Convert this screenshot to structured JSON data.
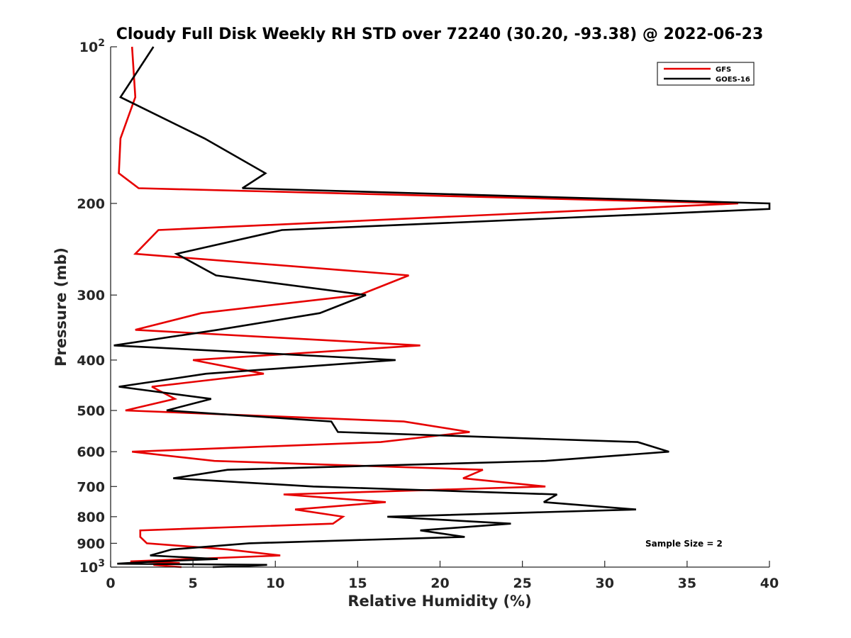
{
  "chart_data": {
    "type": "line",
    "title": "Cloudy Full Disk Weekly RH STD over 72240 (30.20, -93.38) @ 2022-06-23",
    "xlabel": "Relative Humidity (%)",
    "ylabel": "Pressure (mb)",
    "xlim": [
      0,
      40
    ],
    "ylim": [
      100,
      1000
    ],
    "yscale": "log",
    "y_reversed": true,
    "x_ticks": [
      0,
      5,
      10,
      15,
      20,
      25,
      30,
      35,
      40
    ],
    "x_tick_labels": [
      "0",
      "5",
      "10",
      "15",
      "20",
      "25",
      "30",
      "35",
      "40"
    ],
    "y_ticks": [
      100,
      200,
      300,
      400,
      500,
      600,
      700,
      800,
      900,
      1000
    ],
    "y_tick_labels": [
      {
        "base": "10",
        "exp": "2"
      },
      {
        "base": "200",
        "exp": ""
      },
      {
        "base": "300",
        "exp": ""
      },
      {
        "base": "400",
        "exp": ""
      },
      {
        "base": "500",
        "exp": ""
      },
      {
        "base": "600",
        "exp": ""
      },
      {
        "base": "700",
        "exp": ""
      },
      {
        "base": "800",
        "exp": ""
      },
      {
        "base": "900",
        "exp": ""
      },
      {
        "base": "10",
        "exp": "3"
      }
    ],
    "legend_position": "top-right",
    "annotation": "Sample Size = 2",
    "series": [
      {
        "name": "GFS",
        "color": "#e60000",
        "points": [
          [
            1.3,
            100
          ],
          [
            1.5,
            125
          ],
          [
            0.6,
            150
          ],
          [
            0.5,
            175
          ],
          [
            1.7,
            187
          ],
          [
            38.1,
            200
          ],
          [
            2.9,
            225
          ],
          [
            1.5,
            250
          ],
          [
            18.1,
            275
          ],
          [
            15.1,
            300
          ],
          [
            5.5,
            325
          ],
          [
            1.5,
            350
          ],
          [
            18.8,
            375
          ],
          [
            5.0,
            400
          ],
          [
            9.3,
            425
          ],
          [
            2.5,
            450
          ],
          [
            3.9,
            475
          ],
          [
            0.9,
            500
          ],
          [
            17.8,
            525
          ],
          [
            21.8,
            550
          ],
          [
            16.4,
            575
          ],
          [
            1.3,
            600
          ],
          [
            6.3,
            625
          ],
          [
            22.6,
            650
          ],
          [
            21.4,
            675
          ],
          [
            26.4,
            700
          ],
          [
            10.5,
            725
          ],
          [
            16.7,
            750
          ],
          [
            11.2,
            775
          ],
          [
            14.1,
            800
          ],
          [
            13.5,
            825
          ],
          [
            1.8,
            850
          ],
          [
            1.8,
            875
          ],
          [
            2.2,
            900
          ],
          [
            7.1,
            925
          ],
          [
            10.3,
            950
          ],
          [
            1.2,
            975
          ],
          [
            4.2,
            982
          ],
          [
            2.6,
            990
          ],
          [
            4.3,
            1000
          ]
        ]
      },
      {
        "name": "GOES-16",
        "color": "#000000",
        "points": [
          [
            2.6,
            100
          ],
          [
            0.6,
            125
          ],
          [
            5.7,
            150
          ],
          [
            9.4,
            175
          ],
          [
            8.0,
            187
          ],
          [
            40.0,
            200
          ],
          [
            40.0,
            205
          ],
          [
            10.4,
            225
          ],
          [
            4.0,
            250
          ],
          [
            6.4,
            275
          ],
          [
            15.5,
            300
          ],
          [
            12.7,
            325
          ],
          [
            6.5,
            350
          ],
          [
            0.2,
            375
          ],
          [
            17.3,
            400
          ],
          [
            5.8,
            425
          ],
          [
            0.5,
            450
          ],
          [
            6.1,
            475
          ],
          [
            3.4,
            500
          ],
          [
            13.4,
            525
          ],
          [
            13.8,
            550
          ],
          [
            32.0,
            575
          ],
          [
            33.9,
            600
          ],
          [
            26.4,
            625
          ],
          [
            7.1,
            650
          ],
          [
            3.8,
            675
          ],
          [
            12.3,
            700
          ],
          [
            27.1,
            725
          ],
          [
            26.3,
            750
          ],
          [
            31.9,
            775
          ],
          [
            16.8,
            800
          ],
          [
            24.3,
            825
          ],
          [
            18.8,
            850
          ],
          [
            21.5,
            875
          ],
          [
            8.4,
            900
          ],
          [
            3.7,
            925
          ],
          [
            2.4,
            950
          ],
          [
            6.5,
            965
          ],
          [
            2.8,
            975
          ],
          [
            0.4,
            985
          ],
          [
            9.5,
            990
          ],
          [
            8.2,
            995
          ],
          [
            6.2,
            1000
          ]
        ]
      }
    ]
  }
}
